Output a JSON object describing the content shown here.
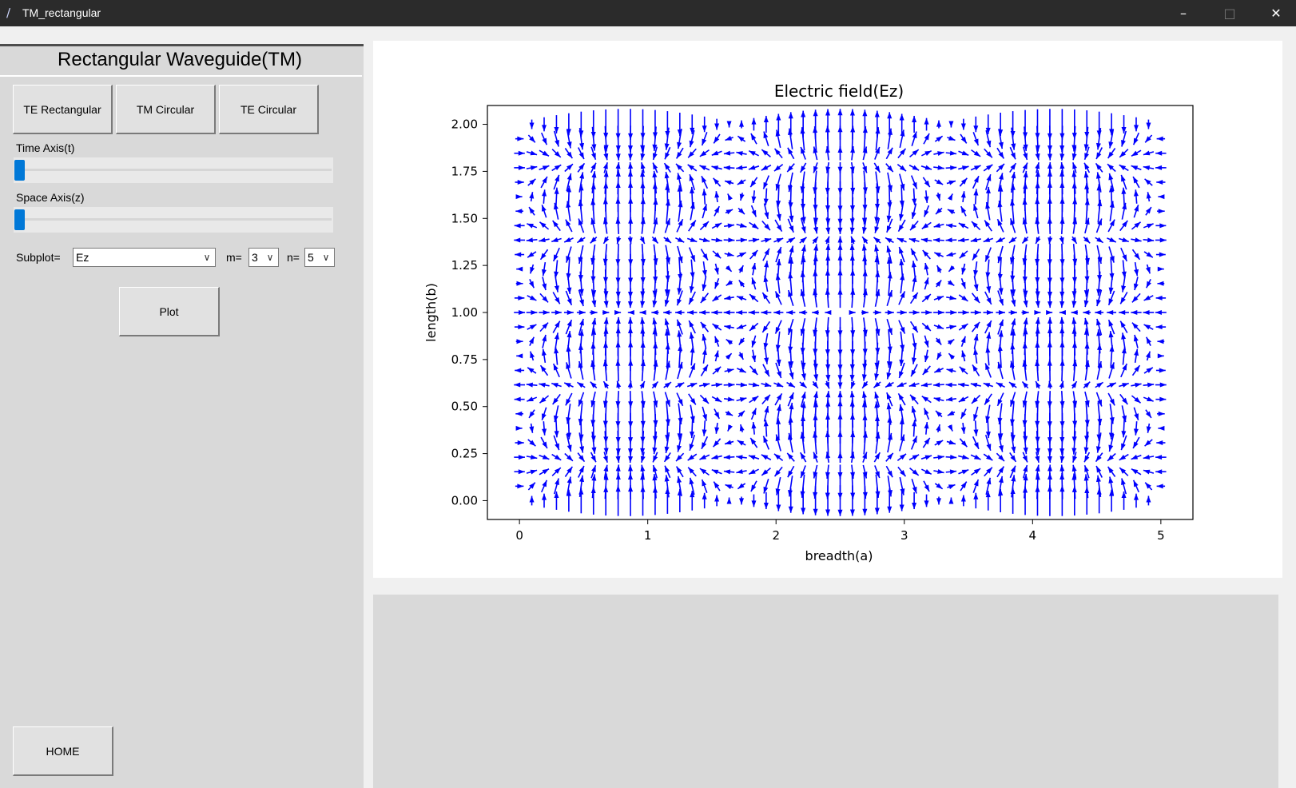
{
  "window": {
    "title": "TM_rectangular",
    "minimize_icon": "minimize-icon",
    "maximize_icon": "maximize-icon",
    "close_icon": "close-icon"
  },
  "panel": {
    "title": "Rectangular Waveguide(TM)",
    "nav_buttons": [
      "TE Rectangular",
      "TM Circular",
      "TE Circular"
    ],
    "time_label": "Time Axis(t)",
    "time_value": 0,
    "space_label": "Space Axis(z)",
    "space_value": 0,
    "subplot_label": "Subplot=",
    "subplot_value": "Ez",
    "m_label": "m=",
    "m_value": "3",
    "n_label": "n=",
    "n_value": "5",
    "plot_button": "Plot",
    "home_button": "HOME"
  },
  "chart_data": {
    "type": "quiver",
    "title": "Electric field(Ez)",
    "xlabel": "breadth(a)",
    "ylabel": "length(b)",
    "xlim": [
      -0.25,
      5.25
    ],
    "ylim": [
      -0.1,
      2.1
    ],
    "xticks": [
      "0",
      "1",
      "2",
      "3",
      "4",
      "5"
    ],
    "yticks": [
      "0.00",
      "0.25",
      "0.50",
      "0.75",
      "1.00",
      "1.25",
      "1.50",
      "1.75",
      "2.00"
    ],
    "x_range": [
      0,
      5
    ],
    "y_range": [
      0,
      2
    ],
    "mode_m": 3,
    "mode_n": 5,
    "grid": false,
    "color": "#0000ff"
  }
}
